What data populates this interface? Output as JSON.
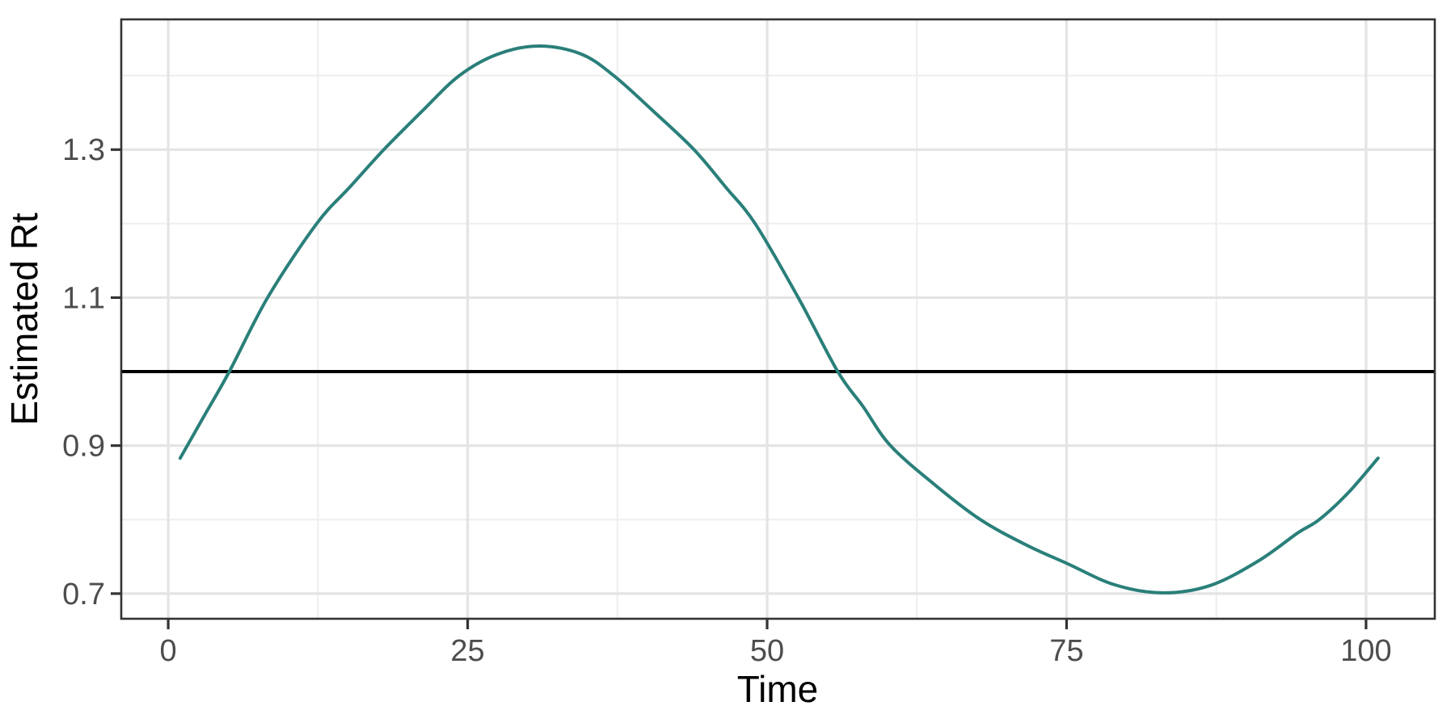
{
  "figure": {
    "background": "#ffffff"
  },
  "chart_data": {
    "type": "line",
    "title": "",
    "xlabel": "Time",
    "ylabel": "Estimated Rt",
    "xlim": [
      -3.92,
      105.74
    ],
    "ylim": [
      0.666,
      1.476
    ],
    "grid": "major-and-minor",
    "legend": "none",
    "x_ticks": [
      {
        "value": 0,
        "label": "0"
      },
      {
        "value": 25,
        "label": "25"
      },
      {
        "value": 50,
        "label": "50"
      },
      {
        "value": 75,
        "label": "75"
      },
      {
        "value": 100,
        "label": "100"
      }
    ],
    "y_ticks": [
      {
        "value": 0.7,
        "label": "0.7"
      },
      {
        "value": 0.9,
        "label": "0.9"
      },
      {
        "value": 1.1,
        "label": "1.1"
      },
      {
        "value": 1.3,
        "label": "1.3"
      }
    ],
    "x_minor_breaks": [
      12.5,
      37.5,
      62.5,
      87.5
    ],
    "y_minor_breaks": [
      0.8,
      1.0,
      1.2,
      1.4
    ],
    "reference_line": {
      "y": 1.0,
      "color": "#000000"
    },
    "series": [
      {
        "name": "Estimated Rt",
        "color": "#2a7f7a",
        "points": [
          [
            1,
            0.883
          ],
          [
            3,
            0.94
          ],
          [
            5.1,
            1.0
          ],
          [
            8.3,
            1.1
          ],
          [
            12.4,
            1.2
          ],
          [
            15.2,
            1.25
          ],
          [
            18,
            1.3
          ],
          [
            21.2,
            1.352
          ],
          [
            24.3,
            1.4
          ],
          [
            27.5,
            1.429
          ],
          [
            31,
            1.44
          ],
          [
            34.5,
            1.429
          ],
          [
            37.2,
            1.4
          ],
          [
            40.5,
            1.352
          ],
          [
            43.9,
            1.3
          ],
          [
            46.5,
            1.25
          ],
          [
            49,
            1.2
          ],
          [
            52.6,
            1.1
          ],
          [
            55.9,
            1.0
          ],
          [
            58,
            0.953
          ],
          [
            60.3,
            0.9
          ],
          [
            64,
            0.847
          ],
          [
            67.8,
            0.8
          ],
          [
            71.6,
            0.766
          ],
          [
            75,
            0.741
          ],
          [
            79,
            0.712
          ],
          [
            83,
            0.701
          ],
          [
            87,
            0.711
          ],
          [
            91,
            0.744
          ],
          [
            94.3,
            0.782
          ],
          [
            96.1,
            0.8
          ],
          [
            98.5,
            0.836
          ],
          [
            101,
            0.883
          ]
        ]
      }
    ]
  },
  "style": {
    "curve_color": "#2a7f7a",
    "reference_line_color": "#000000",
    "grid_major_color": "#e4e4e4",
    "grid_minor_color": "#efefef",
    "panel_border_color": "#333333",
    "tick_mark_color": "#333333",
    "tick_label_color": "#4d4d4d",
    "axis_title_color": "#000000"
  }
}
